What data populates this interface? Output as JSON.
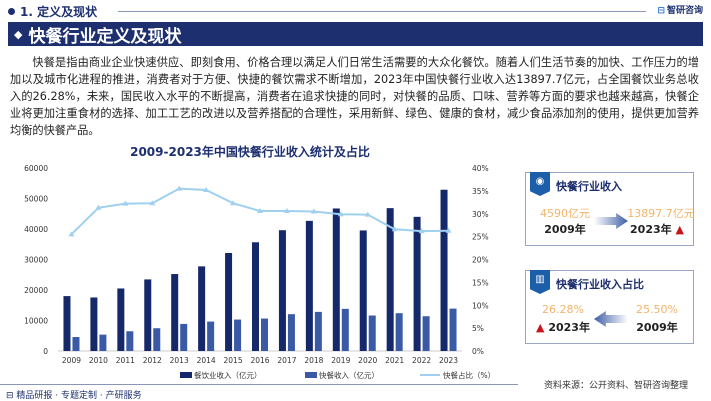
{
  "header": {
    "section": "1. 定义及现状",
    "logo": "智研咨询"
  },
  "title": "快餐行业定义及现状",
  "paragraph": "快餐是指由商业企业快速供应、即刻食用、价格合理以满足人们日常生活需要的大众化餐饮。随着人们生活节奏的加快、工作压力的增加以及城市化进程的推进，消费者对于方便、快捷的餐饮需求不断增加，2023年中国快餐行业收入达13897.7亿元，占全国餐饮业务总收入的26.28%，未来，国民收入水平的不断提高，消费者在追求快捷的同时，对快餐的品质、口味、营养等方面的要求也越来越高，快餐企业将更加注重食材的选择、加工工艺的改进以及营养搭配的合理性，采用新鲜、绿色、健康的食材，减少食品添加剂的使用，提供更加营养均衡的快餐产品。",
  "chart_data": {
    "type": "bar",
    "title": "2009-2023年中国快餐行业收入统计及占比",
    "categories": [
      "2009",
      "2010",
      "2011",
      "2012",
      "2013",
      "2014",
      "2015",
      "2016",
      "2017",
      "2018",
      "2019",
      "2020",
      "2021",
      "2022",
      "2023"
    ],
    "ylim": [
      0,
      60000
    ],
    "y2lim": [
      0,
      40
    ],
    "yticks": [
      "0",
      "10000",
      "20000",
      "30000",
      "40000",
      "50000",
      "60000"
    ],
    "y2ticks": [
      "0%",
      "5%",
      "10%",
      "15%",
      "20%",
      "25%",
      "30%",
      "35%",
      "40%"
    ],
    "legend_position": "bottom",
    "grid": false,
    "series": [
      {
        "name": "餐饮业收入（亿元）",
        "type": "bar",
        "color": "#15286a",
        "values": [
          18000,
          17550,
          20500,
          23470,
          25230,
          27750,
          32140,
          35650,
          39600,
          42670,
          46730,
          39530,
          46840,
          43990,
          52870
        ]
      },
      {
        "name": "快餐收入（亿元）",
        "type": "bar",
        "color": "#3a5aa6",
        "values": [
          4590,
          5370,
          6470,
          7460,
          8880,
          9650,
          10310,
          10640,
          12070,
          12830,
          13820,
          11630,
          12400,
          11400,
          13897.7
        ]
      },
      {
        "name": "快餐占比（%）",
        "type": "line",
        "axis": "right",
        "color": "#9fd0f0",
        "values": [
          25.5,
          31.3,
          32.2,
          32.3,
          35.5,
          35.2,
          32.3,
          30.6,
          30.6,
          30.5,
          29.9,
          29.8,
          26.6,
          26.2,
          26.28
        ]
      }
    ]
  },
  "cards": [
    {
      "title": "快餐行业收入",
      "left_value": "4590亿元",
      "left_year": "2009年",
      "right_value": "13897.7亿元",
      "right_year": "2023年"
    },
    {
      "title": "快餐行业收入占比",
      "left_value": "26.28%",
      "left_year": "2023年",
      "right_value": "25.50%",
      "right_year": "2009年"
    }
  ],
  "source": "资料来源：公开资料、智研咨询整理",
  "footer": "精品研报 · 专题定制 · 产研服务"
}
